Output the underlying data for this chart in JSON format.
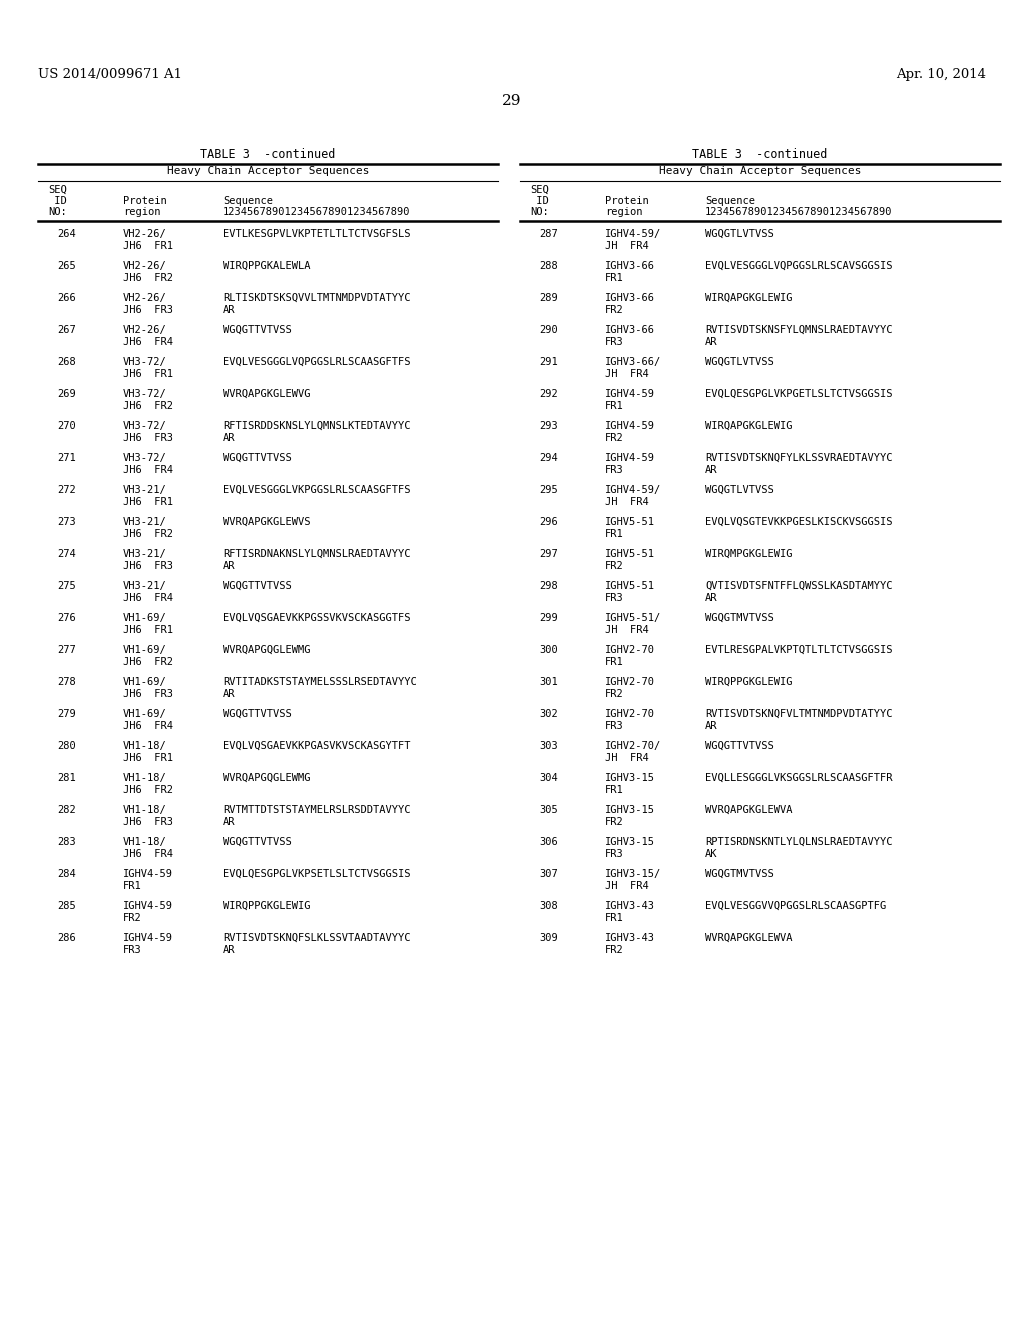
{
  "page_header_left": "US 2014/0099671 A1",
  "page_header_right": "Apr. 10, 2014",
  "page_number": "29",
  "table_title": "TABLE 3  -continued",
  "table_subtitle": "Heavy Chain Acceptor Sequences",
  "left_entries": [
    [
      "264",
      "VH2-26/",
      "JH6  FR1",
      "EVTLKESGPVLVKPTETLTLTCTVSGFSLS",
      ""
    ],
    [
      "265",
      "VH2-26/",
      "JH6  FR2",
      "WIRQPPGKALEWLA",
      ""
    ],
    [
      "266",
      "VH2-26/",
      "JH6  FR3",
      "RLTISKDTSKSQVVLTMTNMDPVDTATYYC",
      "AR"
    ],
    [
      "267",
      "VH2-26/",
      "JH6  FR4",
      "WGQGTTVTVSS",
      ""
    ],
    [
      "268",
      "VH3-72/",
      "JH6  FR1",
      "EVQLVESGGGLVQPGGSLRLSCAASGFTFS",
      ""
    ],
    [
      "269",
      "VH3-72/",
      "JH6  FR2",
      "WVRQAPGKGLEWVG",
      ""
    ],
    [
      "270",
      "VH3-72/",
      "JH6  FR3",
      "RFTISRDDSKNSLYLQMNSLKTEDTAVYYC",
      "AR"
    ],
    [
      "271",
      "VH3-72/",
      "JH6  FR4",
      "WGQGTTVTVSS",
      ""
    ],
    [
      "272",
      "VH3-21/",
      "JH6  FR1",
      "EVQLVESGGGLVKPGGSLRLSCAASGFTFS",
      ""
    ],
    [
      "273",
      "VH3-21/",
      "JH6  FR2",
      "WVRQAPGKGLEWVS",
      ""
    ],
    [
      "274",
      "VH3-21/",
      "JH6  FR3",
      "RFTISRDNAKNSLYLQMNSLRAEDTAVYYC",
      "AR"
    ],
    [
      "275",
      "VH3-21/",
      "JH6  FR4",
      "WGQGTTVTVSS",
      ""
    ],
    [
      "276",
      "VH1-69/",
      "JH6  FR1",
      "EVQLVQSGAEVKKPGSSVKVSCKASGGTFS",
      ""
    ],
    [
      "277",
      "VH1-69/",
      "JH6  FR2",
      "WVRQAPGQGLEWMG",
      ""
    ],
    [
      "278",
      "VH1-69/",
      "JH6  FR3",
      "RVTITADKSTSTAYMELSSSLRSEDTAVYYC",
      "AR"
    ],
    [
      "279",
      "VH1-69/",
      "JH6  FR4",
      "WGQGTTVTVSS",
      ""
    ],
    [
      "280",
      "VH1-18/",
      "JH6  FR1",
      "EVQLVQSGAEVKKPGASVKVSCKASGYTFT",
      ""
    ],
    [
      "281",
      "VH1-18/",
      "JH6  FR2",
      "WVRQAPGQGLEWMG",
      ""
    ],
    [
      "282",
      "VH1-18/",
      "JH6  FR3",
      "RVTMTTDTSTSTAYMELRSLRSDDTAVYYC",
      "AR"
    ],
    [
      "283",
      "VH1-18/",
      "JH6  FR4",
      "WGQGTTVTVSS",
      ""
    ],
    [
      "284",
      "IGHV4-59",
      "FR1",
      "EVQLQESGPGLVKPSETLSLTCTVSGGSIS",
      ""
    ],
    [
      "285",
      "IGHV4-59",
      "FR2",
      "WIRQPPGKGLEWIG",
      ""
    ],
    [
      "286",
      "IGHV4-59",
      "FR3",
      "RVTISVDTSKNQFSLKLSSVTAADTAVYYC",
      "AR"
    ]
  ],
  "right_entries": [
    [
      "287",
      "IGHV4-59/",
      "JH  FR4",
      "WGQGTLVTVSS",
      ""
    ],
    [
      "288",
      "IGHV3-66",
      "FR1",
      "EVQLVESGGGLVQPGGSLRLSCAVSGGSIS",
      ""
    ],
    [
      "289",
      "IGHV3-66",
      "FR2",
      "WIRQAPGKGLEWIG",
      ""
    ],
    [
      "290",
      "IGHV3-66",
      "FR3",
      "RVTISVDTSKNSFYLQMNSLRAEDTAVYYC",
      "AR"
    ],
    [
      "291",
      "IGHV3-66/",
      "JH  FR4",
      "WGQGTLVTVSS",
      ""
    ],
    [
      "292",
      "IGHV4-59",
      "FR1",
      "EVQLQESGPGLVKPGETLSLTCTVSGGSIS",
      ""
    ],
    [
      "293",
      "IGHV4-59",
      "FR2",
      "WIRQAPGKGLEWIG",
      ""
    ],
    [
      "294",
      "IGHV4-59",
      "FR3",
      "RVTISVDTSKNQFYLKLSSVRAEDTAVYYC",
      "AR"
    ],
    [
      "295",
      "IGHV4-59/",
      "JH  FR4",
      "WGQGTLVTVSS",
      ""
    ],
    [
      "296",
      "IGHV5-51",
      "FR1",
      "EVQLVQSGTEVKKPGESLKISCKVSGGSIS",
      ""
    ],
    [
      "297",
      "IGHV5-51",
      "FR2",
      "WIRQMPGKGLEWIG",
      ""
    ],
    [
      "298",
      "IGHV5-51",
      "FR3",
      "QVTISVDTSFNTFFLQWSSLKASDTAMYYC",
      "AR"
    ],
    [
      "299",
      "IGHV5-51/",
      "JH  FR4",
      "WGQGTMVTVSS",
      ""
    ],
    [
      "300",
      "IGHV2-70",
      "FR1",
      "EVTLRESGPALVKPTQTLTLTCTVSGGSIS",
      ""
    ],
    [
      "301",
      "IGHV2-70",
      "FR2",
      "WIRQPPGKGLEWIG",
      ""
    ],
    [
      "302",
      "IGHV2-70",
      "FR3",
      "RVTISVDTSKNQFVLTMTNMDPVDTATYYC",
      "AR"
    ],
    [
      "303",
      "IGHV2-70/",
      "JH  FR4",
      "WGQGTTVTVSS",
      ""
    ],
    [
      "304",
      "IGHV3-15",
      "FR1",
      "EVQLLESGGGLVKSGGSLRLSCAASGFTFR",
      ""
    ],
    [
      "305",
      "IGHV3-15",
      "FR2",
      "WVRQAPGKGLEWVA",
      ""
    ],
    [
      "306",
      "IGHV3-15",
      "FR3",
      "RPTISRDNSKNTLYLQLNSLRAEDTAVYYC",
      "AK"
    ],
    [
      "307",
      "IGHV3-15/",
      "JH  FR4",
      "WGQGTMVTVSS",
      ""
    ],
    [
      "308",
      "IGHV3-43",
      "FR1",
      "EVQLVESGGVVQPGGSLRLSCAASGPTFG",
      ""
    ],
    [
      "309",
      "IGHV3-43",
      "FR2",
      "WVRQAPGKGLEWVA",
      ""
    ]
  ]
}
